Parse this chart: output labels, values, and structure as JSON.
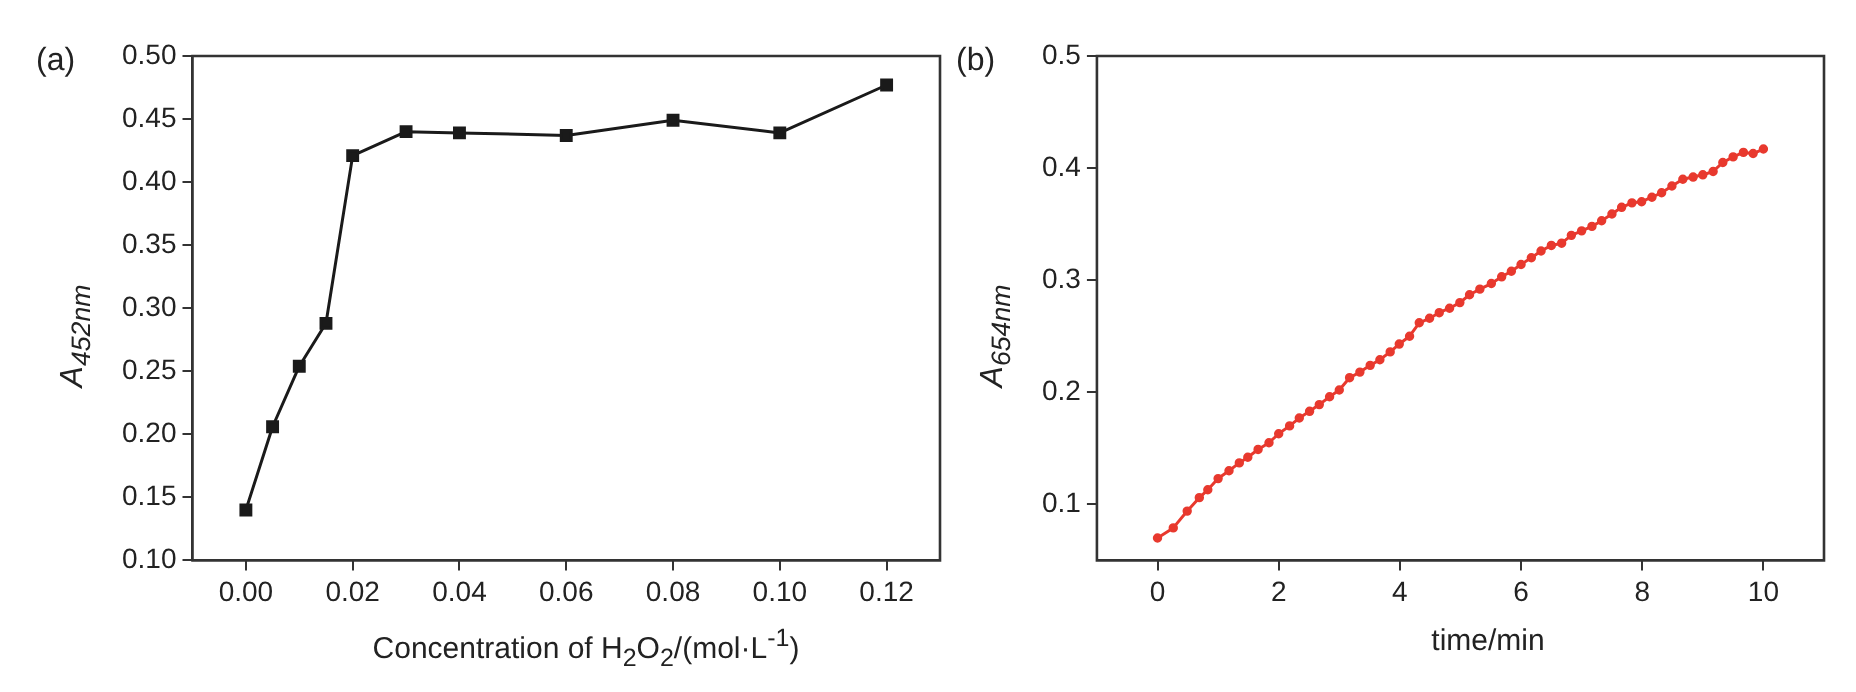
{
  "chart_data": [
    {
      "type": "line",
      "xlabel": "Concentration of H$_{2}$O$_{2}$/(mol·L$^{-1}$)",
      "ylabel": "A$_{452nm}$",
      "annotations": [
        "(a)"
      ],
      "x": [
        0,
        0.005,
        0.01,
        0.015,
        0.02,
        0.03,
        0.04,
        0.06,
        0.08,
        0.1,
        0.12
      ],
      "series": [
        {
          "color": "#1a1a1a",
          "values": [
            0.14,
            0.206,
            0.254,
            0.288,
            0.421,
            0.44,
            0.439,
            0.437,
            0.449,
            0.439,
            0.477
          ]
        }
      ],
      "xlim": [
        -0.01,
        0.13
      ],
      "xticks": [
        {
          "value": 0,
          "label": "0.00"
        },
        {
          "value": 0.02,
          "label": "0.02"
        },
        {
          "value": 0.04,
          "label": "0.04"
        },
        {
          "value": 0.06,
          "label": "0.06"
        },
        {
          "value": 0.08,
          "label": "0.08"
        },
        {
          "value": 0.1,
          "label": "0.10"
        },
        {
          "value": 0.12,
          "label": "0.12"
        }
      ],
      "ylim": [
        0.1,
        0.5
      ],
      "yticks": [
        {
          "value": 0.1,
          "label": "0.10"
        },
        {
          "value": 0.15,
          "label": "0.15"
        },
        {
          "value": 0.2,
          "label": "0.20"
        },
        {
          "value": 0.25,
          "label": "0.25"
        },
        {
          "value": 0.3,
          "label": "0.30"
        },
        {
          "value": 0.35,
          "label": "0.35"
        },
        {
          "value": 0.4,
          "label": "0.40"
        },
        {
          "value": 0.45,
          "label": "0.45"
        },
        {
          "value": 0.5,
          "label": "0.50"
        }
      ],
      "grid": false,
      "legend": false,
      "marker": "square",
      "line_style": "solid"
    },
    {
      "type": "line",
      "xlabel": "time/min",
      "ylabel": "A$_{654nm}$",
      "annotations": [
        "(b)"
      ],
      "x": [
        0,
        0.26,
        0.49,
        0.69,
        0.83,
        1.0,
        1.18,
        1.35,
        1.49,
        1.66,
        1.84,
        2.0,
        2.18,
        2.34,
        2.51,
        2.67,
        2.84,
        3.0,
        3.17,
        3.34,
        3.51,
        3.67,
        3.84,
        3.99,
        4.16,
        4.32,
        4.49,
        4.65,
        4.82,
        4.99,
        5.15,
        5.32,
        5.51,
        5.68,
        5.84,
        6.0,
        6.17,
        6.33,
        6.5,
        6.67,
        6.83,
        7.0,
        7.17,
        7.33,
        7.5,
        7.66,
        7.83,
        7.99,
        8.16,
        8.32,
        8.49,
        8.67,
        8.84,
        9.0,
        9.17,
        9.33,
        9.5,
        9.67,
        9.83,
        10.0
      ],
      "series": [
        {
          "color": "#e8392e",
          "values": [
            0.07,
            0.079,
            0.094,
            0.106,
            0.113,
            0.123,
            0.13,
            0.137,
            0.142,
            0.149,
            0.155,
            0.163,
            0.17,
            0.177,
            0.183,
            0.189,
            0.196,
            0.202,
            0.213,
            0.218,
            0.224,
            0.229,
            0.236,
            0.243,
            0.25,
            0.262,
            0.266,
            0.271,
            0.275,
            0.28,
            0.287,
            0.292,
            0.297,
            0.303,
            0.308,
            0.314,
            0.32,
            0.326,
            0.331,
            0.333,
            0.34,
            0.344,
            0.348,
            0.353,
            0.359,
            0.365,
            0.369,
            0.37,
            0.374,
            0.378,
            0.384,
            0.39,
            0.392,
            0.394,
            0.397,
            0.405,
            0.41,
            0.414,
            0.413,
            0.417
          ]
        }
      ],
      "xlim": [
        -1,
        11
      ],
      "xticks": [
        0,
        2,
        4,
        6,
        8,
        10
      ],
      "ylim": [
        0.05,
        0.5
      ],
      "yticks": [
        0.1,
        0.2,
        0.3,
        0.4,
        0.5
      ],
      "grid": false,
      "legend": false,
      "marker": "circle",
      "line_style": "solid"
    }
  ]
}
